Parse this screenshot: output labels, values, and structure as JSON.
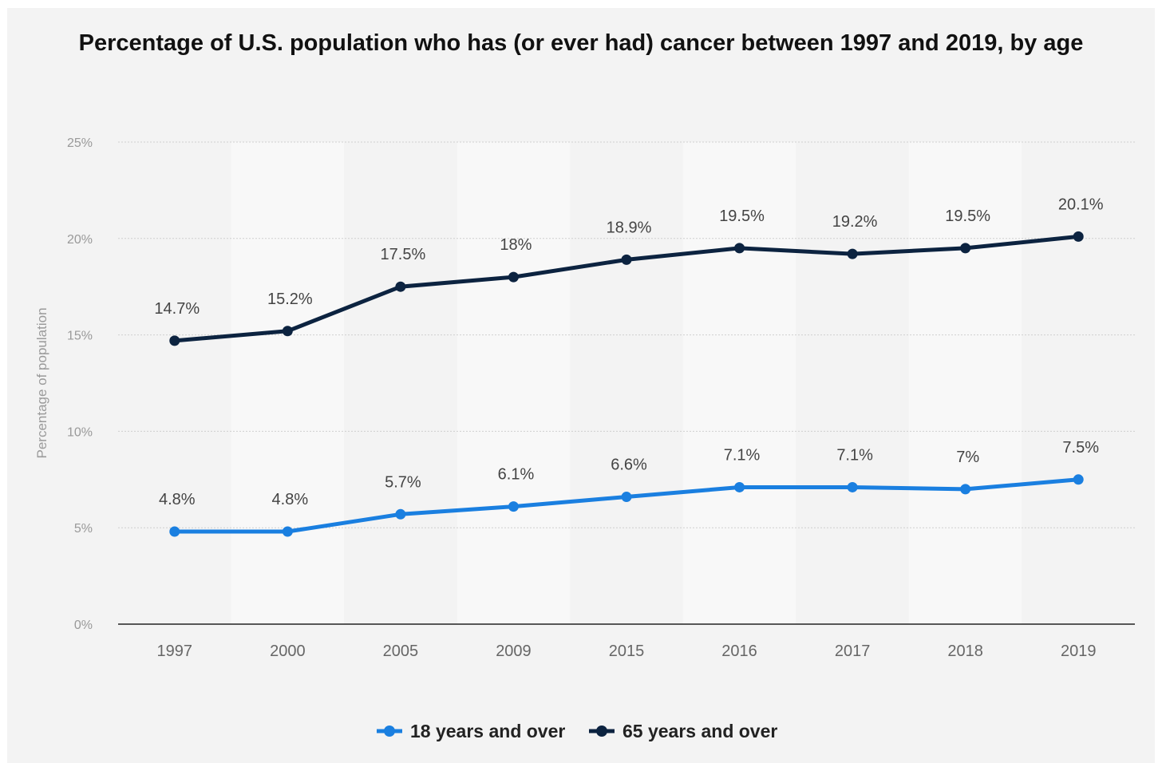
{
  "chart_data": {
    "type": "line",
    "title": "Percentage of U.S. population who has (or ever had) cancer between 1997 and 2019, by age",
    "xlabel": "",
    "ylabel": "Percentage of population",
    "categories": [
      "1997",
      "2000",
      "2005",
      "2009",
      "2015",
      "2016",
      "2017",
      "2018",
      "2019"
    ],
    "yticks": [
      "0%",
      "5%",
      "10%",
      "15%",
      "20%",
      "25%"
    ],
    "ylim": [
      0,
      25
    ],
    "grid": true,
    "legend_position": "bottom",
    "series": [
      {
        "name": "18 years and over",
        "color": "#1a7fe0",
        "values": [
          4.8,
          4.8,
          5.7,
          6.1,
          6.6,
          7.1,
          7.1,
          7.0,
          7.5
        ],
        "labels": [
          "4.8%",
          "4.8%",
          "5.7%",
          "6.1%",
          "6.6%",
          "7.1%",
          "7.1%",
          "7%",
          "7.5%"
        ]
      },
      {
        "name": "65 years and over",
        "color": "#0c2340",
        "values": [
          14.7,
          15.2,
          17.5,
          18.0,
          18.9,
          19.5,
          19.2,
          19.5,
          20.1
        ],
        "labels": [
          "14.7%",
          "15.2%",
          "17.5%",
          "18%",
          "18.9%",
          "19.5%",
          "19.2%",
          "19.5%",
          "20.1%"
        ]
      }
    ]
  }
}
